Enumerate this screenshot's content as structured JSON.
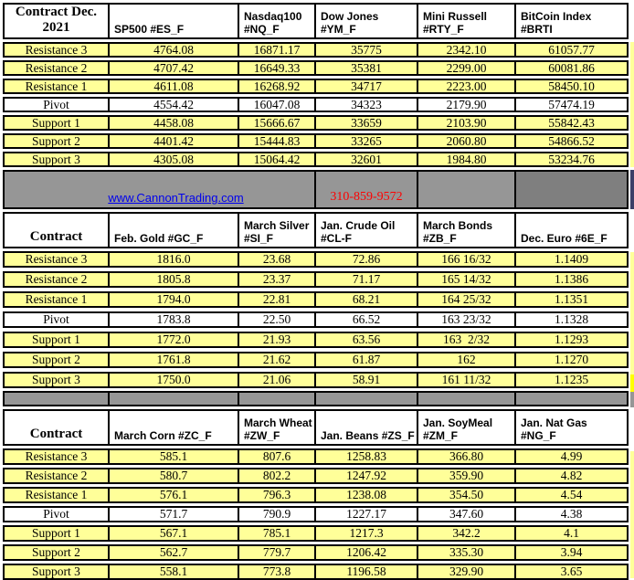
{
  "colors": {
    "cell_yellow": "#FFFF99",
    "pivot_white": "#FFFFFF",
    "band_gray": "#969696",
    "band_gray_dark": "#7F7F7F",
    "border_black": "#000000",
    "link_blue": "#0000EE",
    "phone_red": "#FF0000",
    "edge_navy": "#3C3F68",
    "edge_bright_yellow": "#FFFF00"
  },
  "row_labels": [
    "Resistance 3",
    "Resistance 2",
    "Resistance 1",
    "Pivot",
    "Support 1",
    "Support 2",
    "Support 3"
  ],
  "sections": [
    {
      "corner": "Contract Dec.\n2021",
      "columns": [
        "SP500 #ES_F",
        "Nasdaq100\n#NQ_F",
        "Dow Jones\n#YM_F",
        "Mini Russell\n#RTY_F",
        "BitCoin Index #BRTI"
      ],
      "data": [
        [
          "4764.08",
          "16871.17",
          "35775",
          "2342.10",
          "61057.77"
        ],
        [
          "4707.42",
          "16649.33",
          "35381",
          "2299.00",
          "60081.86"
        ],
        [
          "4611.08",
          "16268.92",
          "34717",
          "2223.00",
          "58450.10"
        ],
        [
          "4554.42",
          "16047.08",
          "34323",
          "2179.90",
          "57474.19"
        ],
        [
          "4458.08",
          "15666.67",
          "33659",
          "2103.90",
          "55842.43"
        ],
        [
          "4401.42",
          "15444.83",
          "33265",
          "2060.80",
          "54866.52"
        ],
        [
          "4305.08",
          "15064.42",
          "32601",
          "1984.80",
          "53234.76"
        ]
      ]
    },
    {
      "corner": "Contract",
      "columns": [
        "Feb. Gold #GC_F",
        "March Silver\n#SI_F",
        "Jan. Crude Oil\n#CL-F",
        "March Bonds\n#ZB_F",
        "Dec.  Euro #6E_F"
      ],
      "data": [
        [
          "1816.0",
          "23.68",
          "72.86",
          "166 16/32",
          "1.1409"
        ],
        [
          "1805.8",
          "23.37",
          "71.17",
          "165 14/32",
          "1.1386"
        ],
        [
          "1794.0",
          "22.81",
          "68.21",
          "164 25/32",
          "1.1351"
        ],
        [
          "1783.8",
          "22.50",
          "66.52",
          "163 23/32",
          "1.1328"
        ],
        [
          "1772.0",
          "21.93",
          "63.56",
          "163  2/32",
          "1.1293"
        ],
        [
          "1761.8",
          "21.62",
          "61.87",
          "162",
          "1.1270"
        ],
        [
          "1750.0",
          "21.06",
          "58.91",
          "161 11/32",
          "1.1235"
        ]
      ]
    },
    {
      "corner": "Contract",
      "columns": [
        "March Corn #ZC_F",
        "March  Wheat\n#ZW_F",
        "Jan. Beans #ZS_F",
        "Jan. SoyMeal\n#ZM_F",
        "Jan. Nat Gas #NG_F"
      ],
      "data": [
        [
          "585.1",
          "807.6",
          "1258.83",
          "366.80",
          "4.99"
        ],
        [
          "580.7",
          "802.2",
          "1247.92",
          "359.90",
          "4.82"
        ],
        [
          "576.1",
          "796.3",
          "1238.08",
          "354.50",
          "4.54"
        ],
        [
          "571.7",
          "790.9",
          "1227.17",
          "347.60",
          "4.38"
        ],
        [
          "567.1",
          "785.1",
          "1217.3",
          "342.2",
          "4.1"
        ],
        [
          "562.7",
          "779.7",
          "1206.42",
          "335.30",
          "3.94"
        ],
        [
          "558.1",
          "773.8",
          "1196.58",
          "329.90",
          "3.65"
        ]
      ]
    }
  ],
  "contact": {
    "website": "www.CannonTrading.com",
    "phone": "310-859-9572"
  }
}
